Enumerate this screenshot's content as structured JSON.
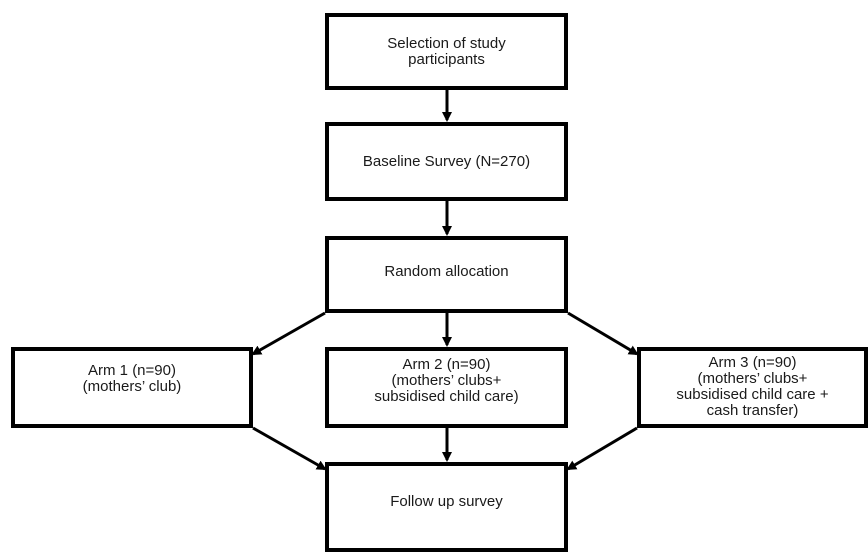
{
  "nodes": {
    "selection": {
      "lines": [
        "Selection of study",
        "participants"
      ]
    },
    "baseline": {
      "lines": [
        "Baseline Survey (N=270)"
      ]
    },
    "random": {
      "lines": [
        "Random allocation"
      ]
    },
    "arm1": {
      "lines": [
        "Arm 1 (n=90)",
        "(mothers’ club)"
      ]
    },
    "arm2": {
      "lines": [
        "Arm 2 (n=90)",
        "(mothers’ clubs+",
        "subsidised child care)"
      ]
    },
    "arm3": {
      "lines": [
        "Arm 3 (n=90)",
        "(mothers’ clubs+",
        "subsidised child care +",
        "cash transfer)"
      ]
    },
    "follow": {
      "lines": [
        "Follow up survey"
      ]
    }
  },
  "edges": [
    {
      "from": "selection",
      "to": "baseline"
    },
    {
      "from": "baseline",
      "to": "random"
    },
    {
      "from": "random",
      "to": "arm1"
    },
    {
      "from": "random",
      "to": "arm2"
    },
    {
      "from": "random",
      "to": "arm3"
    },
    {
      "from": "arm1",
      "to": "follow"
    },
    {
      "from": "arm2",
      "to": "follow"
    },
    {
      "from": "arm3",
      "to": "follow"
    }
  ]
}
